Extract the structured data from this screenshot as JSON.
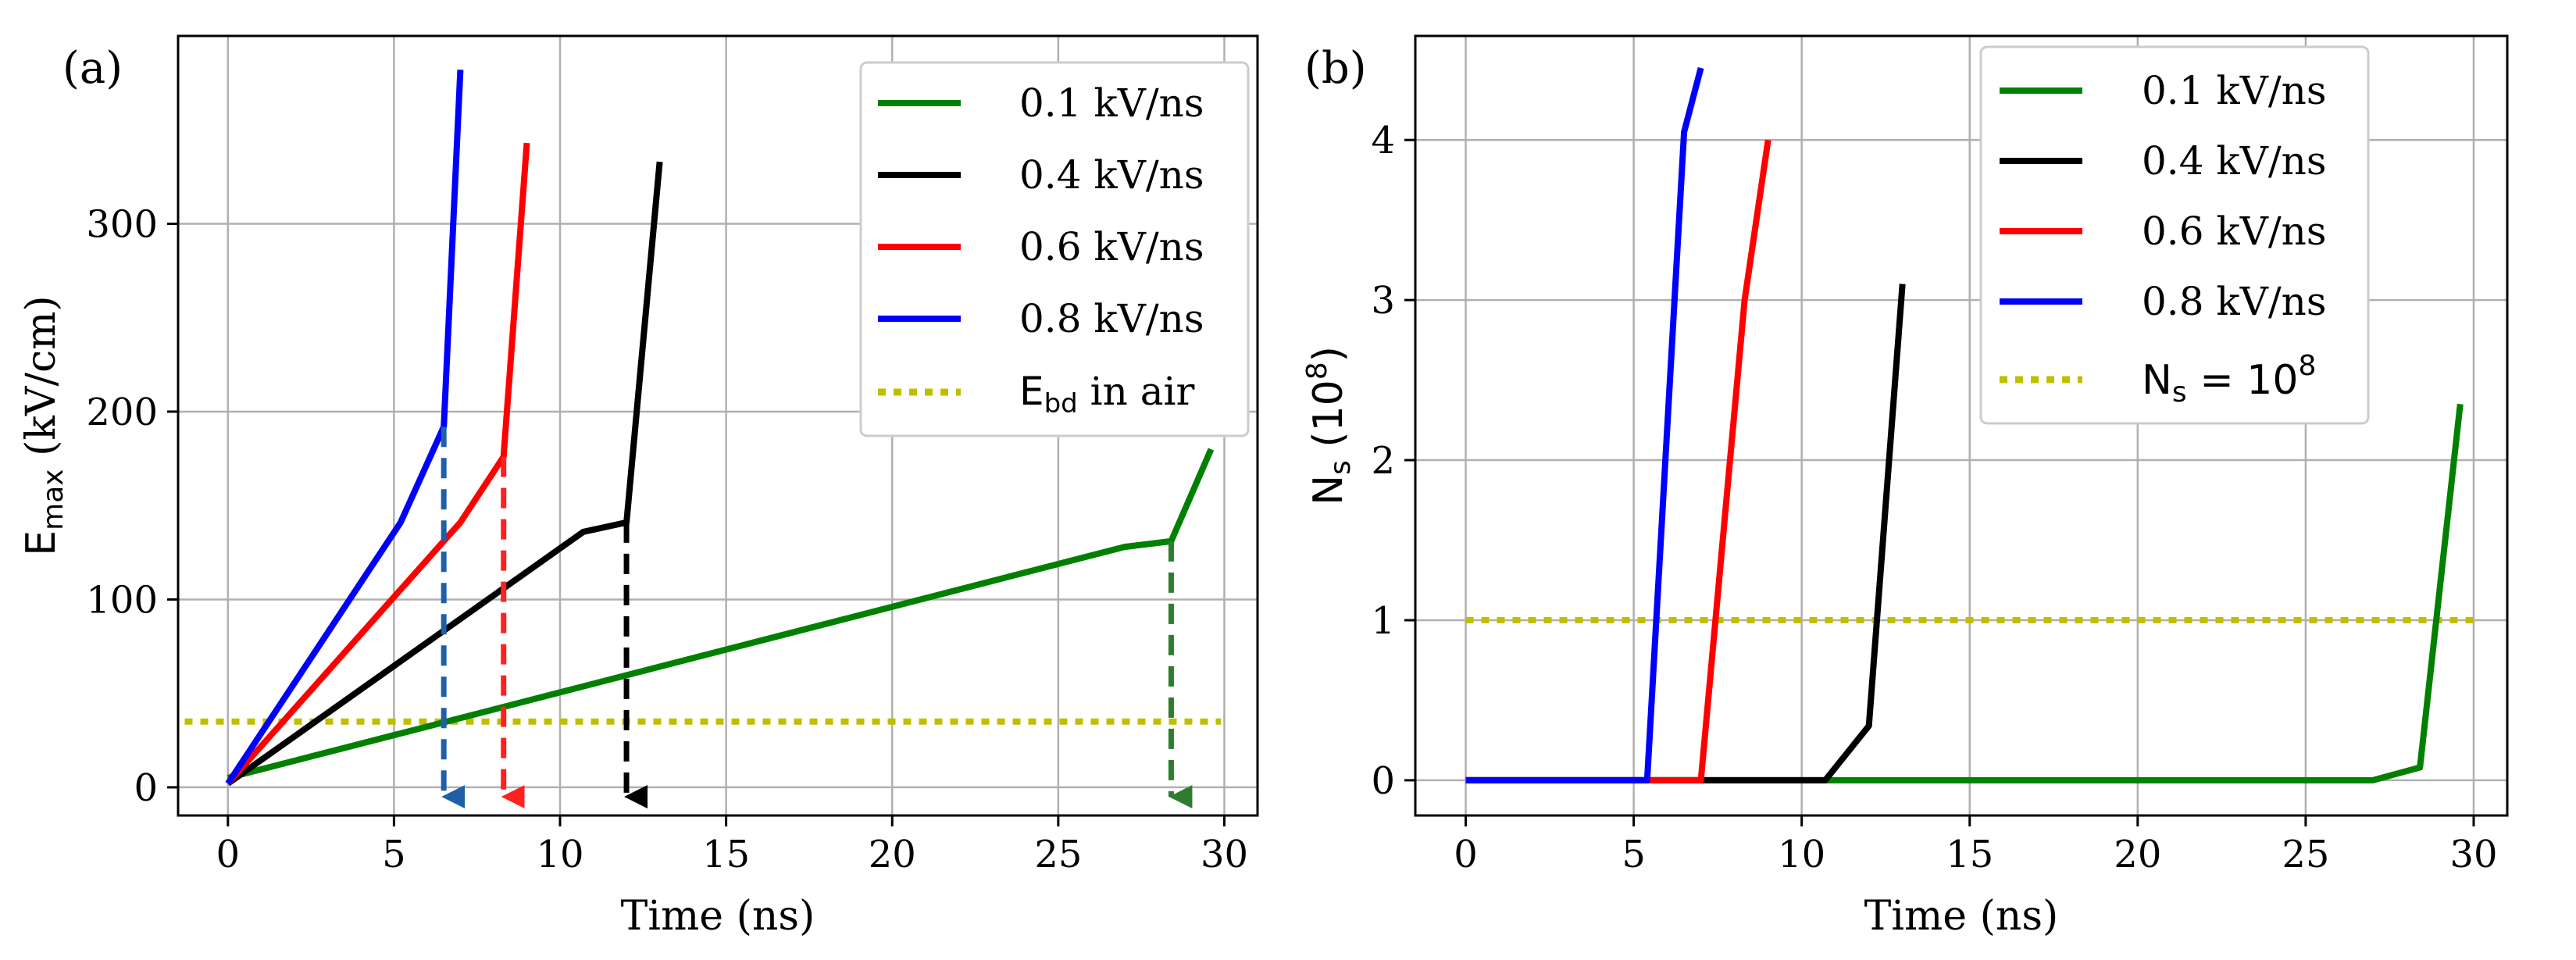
{
  "chart_data": [
    {
      "type": "line",
      "panel_label": "(a)",
      "xlabel": "Time (ns)",
      "ylabel_main": "E",
      "ylabel_sub": "max",
      "ylabel_rest": " (kV/cm)",
      "xlim": [
        -1.5,
        31
      ],
      "ylim": [
        -15,
        400
      ],
      "xticks": [
        0,
        5,
        10,
        15,
        20,
        25,
        30
      ],
      "yticks": [
        0,
        100,
        200,
        300
      ],
      "grid": true,
      "legend_position": "top-right",
      "series": [
        {
          "name": "0.1 kV/ns",
          "color": "#008000",
          "dash": "solid",
          "x": [
            0,
            27,
            28.4,
            29.6
          ],
          "y": [
            5,
            128,
            131,
            180
          ]
        },
        {
          "name": "0.4 kV/ns",
          "color": "#000000",
          "dash": "solid",
          "x": [
            0,
            10.7,
            12,
            13
          ],
          "y": [
            2,
            136,
            141,
            333
          ]
        },
        {
          "name": "0.6 kV/ns",
          "color": "#ff0000",
          "dash": "solid",
          "x": [
            0,
            7,
            8.3,
            9
          ],
          "y": [
            2,
            141,
            176,
            343
          ]
        },
        {
          "name": "0.8 kV/ns",
          "color": "#0000ff",
          "dash": "solid",
          "x": [
            0,
            5.2,
            6.5,
            7
          ],
          "y": [
            2,
            141,
            192,
            382
          ]
        }
      ],
      "threshold": {
        "name_main": "E",
        "name_sub": "bd",
        "name_rest": " in air",
        "value": 35,
        "color": "#bfbf00",
        "x_range": [
          -1.3,
          29.9
        ]
      },
      "arrows": [
        {
          "x": 6.5,
          "from": 192,
          "to": -10,
          "color": "#1f5fa8"
        },
        {
          "x": 8.3,
          "from": 176,
          "to": -10,
          "color": "#ff2020"
        },
        {
          "x": 12,
          "from": 141,
          "to": -10,
          "color": "#000000"
        },
        {
          "x": 28.4,
          "from": 131,
          "to": -10,
          "color": "#2e7d2e"
        }
      ]
    },
    {
      "type": "line",
      "panel_label": "(b)",
      "xlabel": "Time (ns)",
      "ylabel_main": "N",
      "ylabel_sub": "s",
      "ylabel_rest": " (10",
      "ylabel_sup": "8",
      "ylabel_end": ")",
      "xlim": [
        -1.5,
        31
      ],
      "ylim": [
        -0.22,
        4.65
      ],
      "xticks": [
        0,
        5,
        10,
        15,
        20,
        25,
        30
      ],
      "yticks": [
        0,
        1,
        2,
        3,
        4
      ],
      "grid": true,
      "legend_position": "top-right",
      "series": [
        {
          "name": "0.1 kV/ns",
          "color": "#008000",
          "dash": "solid",
          "x": [
            0,
            27,
            28.4,
            29.6
          ],
          "y": [
            0,
            0,
            0.08,
            2.35
          ]
        },
        {
          "name": "0.4 kV/ns",
          "color": "#000000",
          "dash": "solid",
          "x": [
            0,
            10.7,
            12,
            13
          ],
          "y": [
            0,
            0,
            0.34,
            3.1
          ]
        },
        {
          "name": "0.6 kV/ns",
          "color": "#ff0000",
          "dash": "solid",
          "x": [
            0,
            7,
            8.3,
            9
          ],
          "y": [
            0,
            0,
            3,
            4
          ]
        },
        {
          "name": "0.8 kV/ns",
          "color": "#0000ff",
          "dash": "solid",
          "x": [
            0,
            5.4,
            6.5,
            7
          ],
          "y": [
            0,
            0,
            4.05,
            4.45
          ]
        }
      ],
      "threshold": {
        "name_main": "N",
        "name_sub": "s",
        "name_rest": " = 10",
        "name_sup": "8",
        "value": 1,
        "color": "#bfbf00",
        "x_range": [
          0,
          30
        ]
      }
    }
  ]
}
